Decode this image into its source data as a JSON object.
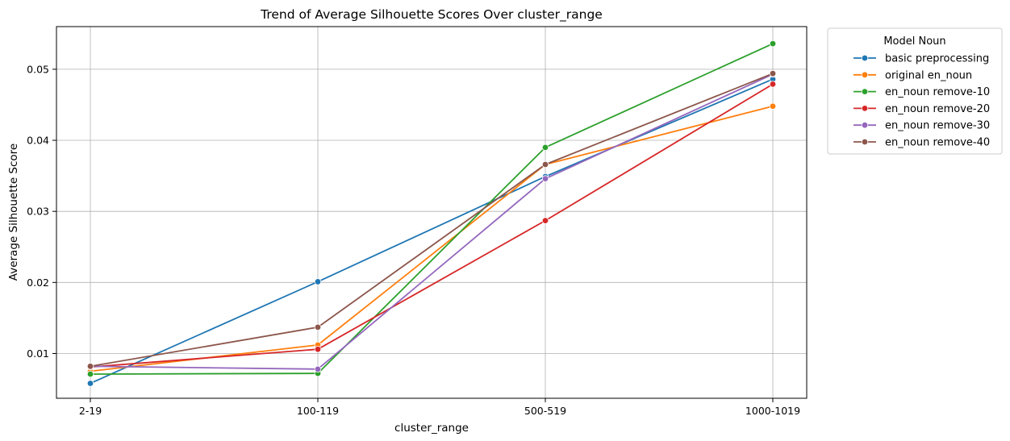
{
  "chart_data": {
    "type": "line",
    "title": "Trend of Average Silhouette Scores Over cluster_range",
    "xlabel": "cluster_range",
    "ylabel": "Average Silhouette Score",
    "categories": [
      "2-19",
      "100-119",
      "500-519",
      "1000-1019"
    ],
    "ylim": [
      0.0037,
      0.056
    ],
    "yticks": [
      0.01,
      0.02,
      0.03,
      0.04,
      0.05
    ],
    "ytick_labels": [
      "0.01",
      "0.02",
      "0.03",
      "0.04",
      "0.05"
    ],
    "grid": true,
    "legend_title": "Model Noun",
    "legend_position": "outside-top-right",
    "series": [
      {
        "name": "basic preprocessing",
        "color": "#1f77b4",
        "values": [
          0.0058,
          0.0201,
          0.0349,
          0.0486
        ]
      },
      {
        "name": "original en_noun",
        "color": "#ff7f0e",
        "values": [
          0.0075,
          0.0112,
          0.0366,
          0.0448
        ]
      },
      {
        "name": "en_noun remove-10",
        "color": "#2ca02c",
        "values": [
          0.0071,
          0.0072,
          0.039,
          0.0536
        ]
      },
      {
        "name": "en_noun remove-20",
        "color": "#d62728",
        "values": [
          0.0081,
          0.0106,
          0.0287,
          0.0479
        ]
      },
      {
        "name": "en_noun remove-30",
        "color": "#9467bd",
        "values": [
          0.0082,
          0.0078,
          0.0346,
          0.0493
        ]
      },
      {
        "name": "en_noun remove-40",
        "color": "#8c564b",
        "values": [
          0.0082,
          0.0137,
          0.0366,
          0.0494
        ]
      }
    ]
  }
}
